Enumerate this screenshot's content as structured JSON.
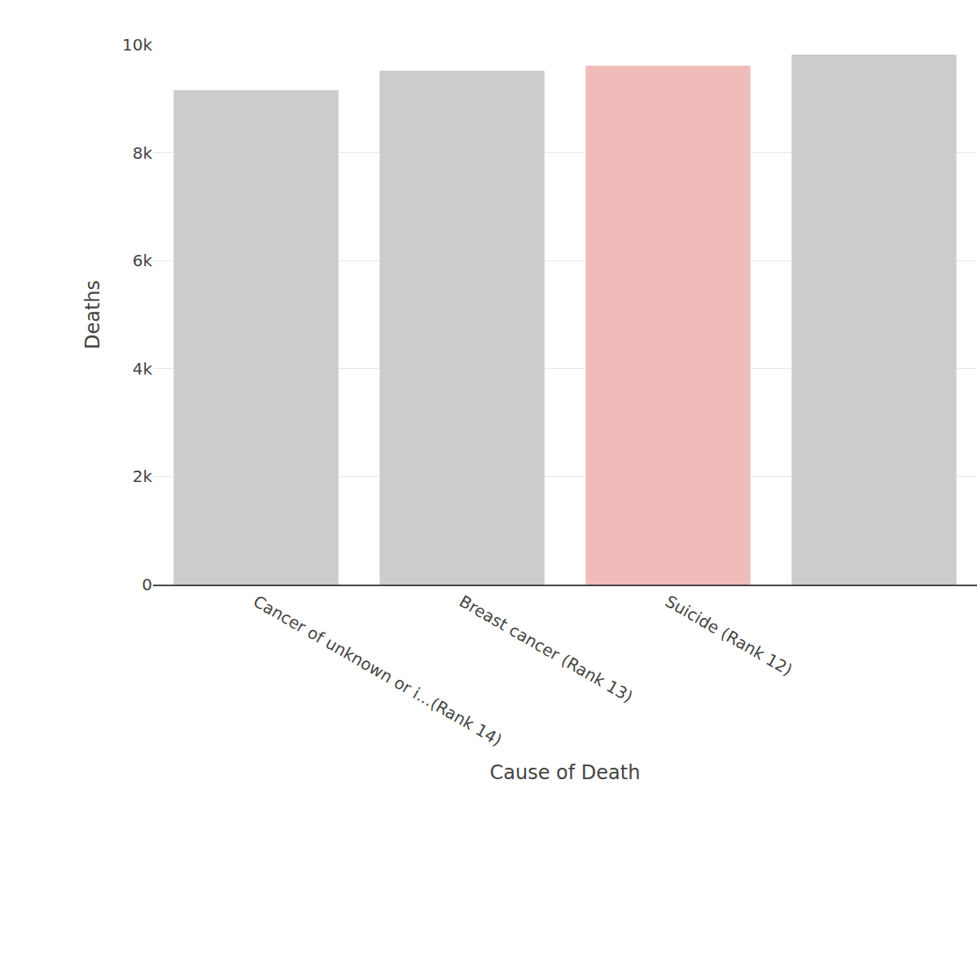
{
  "chart_data": {
    "type": "bar",
    "x_label": "Cause of Death",
    "y_label": "Deaths",
    "categories": [
      "Cancer of unknown or i...(Rank 14)",
      "Breast cancer (Rank 13)",
      "Suicide (Rank 12)",
      null
    ],
    "values": [
      9160,
      9520,
      9610,
      9820
    ],
    "colors": [
      "#cccccc",
      "#cccccc",
      "#efbcb9",
      "#cccccc"
    ],
    "ylim": [
      0,
      10000
    ],
    "yticks": [
      0,
      {
        "value": 2000,
        "label": "2k"
      },
      {
        "value": 4000,
        "label": "4k"
      },
      {
        "value": 6000,
        "label": "6k"
      },
      {
        "value": 8000,
        "label": "8k"
      },
      {
        "value": 10000,
        "label": "10k"
      }
    ],
    "grid": true
  }
}
